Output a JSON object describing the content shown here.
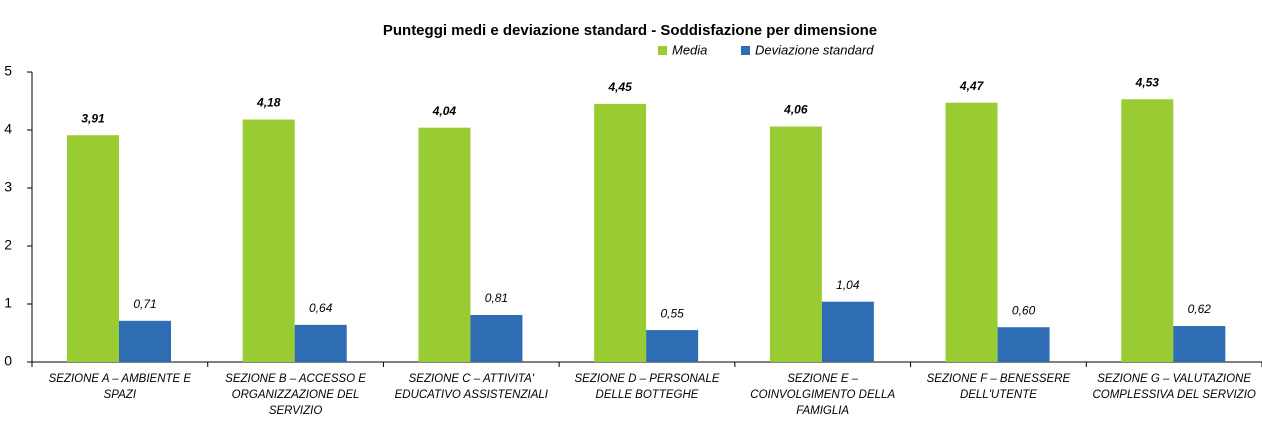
{
  "chart_data": {
    "type": "bar",
    "title": "Punteggi medi e deviazione standard - Soddisfazione per dimensione",
    "categories": [
      "SEZIONE A – AMBIENTE E SPAZI",
      "SEZIONE B – ACCESSO E ORGANIZZAZIONE DEL SERVIZIO",
      "SEZIONE C – ATTIVITA' EDUCATIVO ASSISTENZIALI",
      "SEZIONE D – PERSONALE DELLE BOTTEGHE",
      "SEZIONE E – COINVOLGIMENTO DELLA FAMIGLIA",
      "SEZIONE F – BENESSERE DELL'UTENTE",
      "SEZIONE G – VALUTAZIONE COMPLESSIVA DEL SERVIZIO"
    ],
    "series": [
      {
        "name": "Media",
        "color": "#99cc33",
        "values": [
          3.91,
          4.18,
          4.04,
          4.45,
          4.06,
          4.47,
          4.53
        ],
        "value_labels": [
          "3,91",
          "4,18",
          "4,04",
          "4,45",
          "4,06",
          "4,47",
          "4,53"
        ]
      },
      {
        "name": "Deviazione standard",
        "color": "#2e6db4",
        "values": [
          0.71,
          0.64,
          0.81,
          0.55,
          1.04,
          0.6,
          0.62
        ],
        "value_labels": [
          "0,71",
          "0,64",
          "0,81",
          "0,55",
          "1,04",
          "0,60",
          "0,62"
        ]
      }
    ],
    "ylim": [
      0,
      5
    ],
    "yticks": [
      0,
      1,
      2,
      3,
      4,
      5
    ],
    "grid": false,
    "legend": "top"
  }
}
